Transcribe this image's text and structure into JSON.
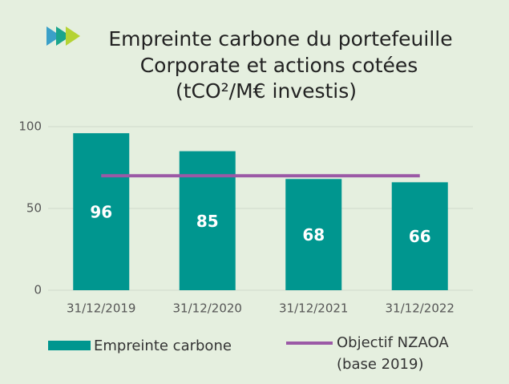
{
  "chart_data": {
    "type": "bar",
    "title": [
      "Empreinte carbone du portefeuille",
      "Corporate et actions cotées",
      "(tCO²/M€ investis)"
    ],
    "categories": [
      "31/12/2019",
      "31/12/2020",
      "31/12/2021",
      "31/12/2022"
    ],
    "series": [
      {
        "name": "Empreinte carbone",
        "type": "bar",
        "color": "#00968f",
        "values": [
          96,
          85,
          68,
          66
        ]
      },
      {
        "name": "Objectif NZAOA (base 2019)",
        "type": "line",
        "color": "#9b59a6",
        "values": [
          70,
          70,
          70,
          70
        ]
      }
    ],
    "ylim": [
      0,
      100
    ],
    "yticks": [
      0,
      50,
      100
    ],
    "grid": true
  }
}
